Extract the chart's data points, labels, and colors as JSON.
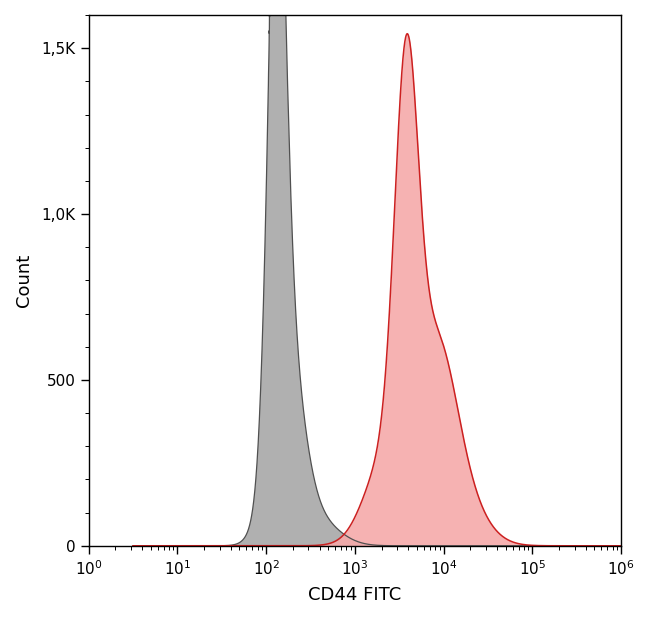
{
  "title": "",
  "xlabel": "CD44 FITC",
  "ylabel": "Count",
  "ylim": [
    0,
    1600
  ],
  "yticks": [
    0,
    500,
    1000,
    1500
  ],
  "ytick_labels": [
    "0",
    "500",
    "1,0K",
    "1,5K"
  ],
  "background_color": "#ffffff",
  "gray_fill_color": "#b0b0b0",
  "gray_edge_color": "#505050",
  "red_fill_color": "#f5aaaa",
  "red_edge_color": "#cc2020"
}
